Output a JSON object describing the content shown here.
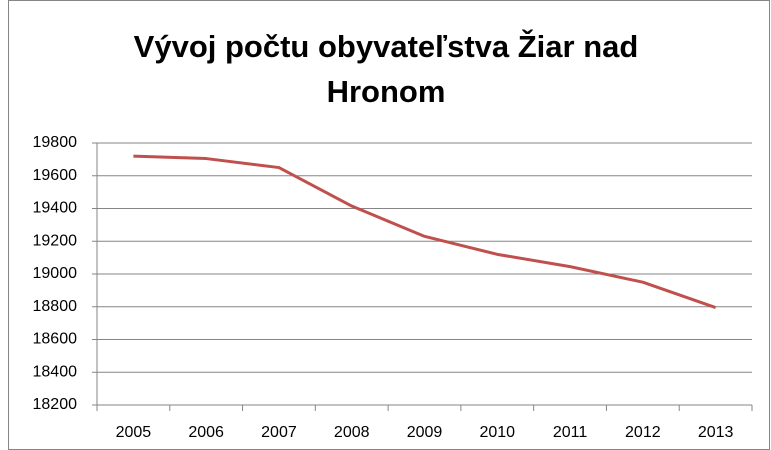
{
  "chart_data": {
    "type": "line",
    "title": "Vývoj počtu obyvateľstva Žiar nad Hronom",
    "categories": [
      "2005",
      "2006",
      "2007",
      "2008",
      "2009",
      "2010",
      "2011",
      "2012",
      "2013"
    ],
    "series": [
      {
        "color": "#c0504d",
        "values": [
          19720,
          19705,
          19650,
          19415,
          19230,
          19120,
          19045,
          18950,
          18795
        ]
      }
    ],
    "ylim": [
      18200,
      19800
    ],
    "yticks": [
      18200,
      18400,
      18600,
      18800,
      19000,
      19200,
      19400,
      19600,
      19800
    ],
    "grid": true
  }
}
